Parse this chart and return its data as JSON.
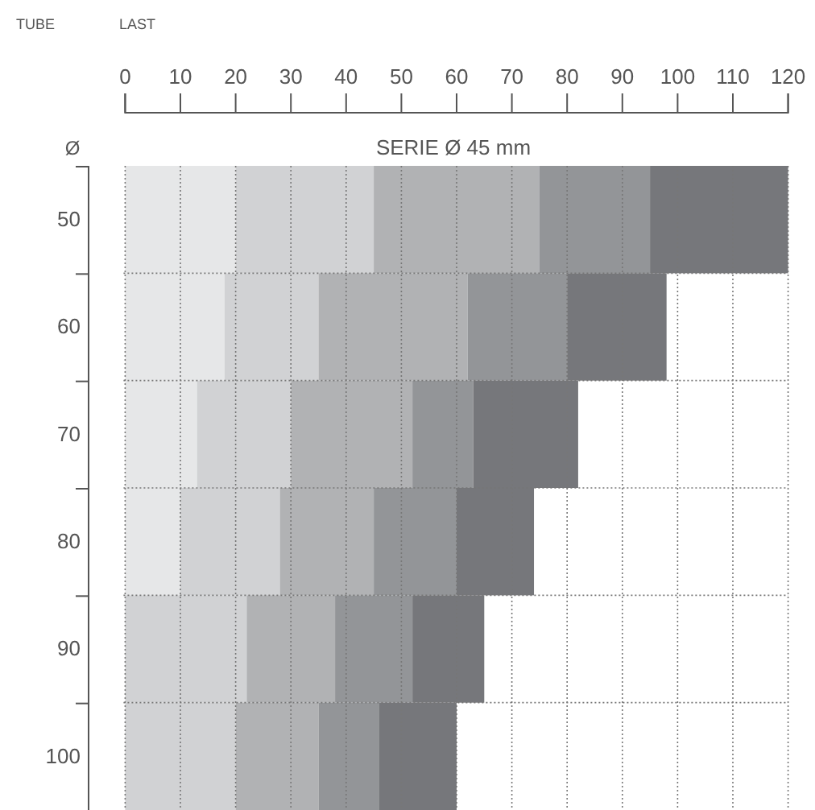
{
  "chart_data": {
    "type": "bar",
    "orientation": "horizontal",
    "stacked": true,
    "title": "SERIE Ø 45 mm",
    "xlabel": "LAST",
    "ylabel": "TUBE",
    "annotations": [
      "Ø"
    ],
    "categories": [
      "50",
      "60",
      "70",
      "80",
      "90",
      "100"
    ],
    "series": [
      {
        "color": "#e6e7e8",
        "values": [
          20,
          18,
          13,
          10,
          null,
          null
        ]
      },
      {
        "color": "#d1d2d4",
        "values": [
          25,
          17,
          17,
          18,
          22,
          20
        ]
      },
      {
        "color": "#b1b2b4",
        "values": [
          30,
          27,
          22,
          17,
          16,
          15
        ]
      },
      {
        "color": "#939598",
        "values": [
          20,
          18,
          11,
          15,
          14,
          11
        ]
      },
      {
        "color": "#76777b",
        "values": [
          25,
          18,
          19,
          14,
          13,
          14
        ]
      }
    ],
    "xlim": [
      0,
      120
    ],
    "xticks": [
      0,
      10,
      20,
      30,
      40,
      50,
      60,
      70,
      80,
      90,
      100,
      110,
      120
    ],
    "grid": true
  }
}
